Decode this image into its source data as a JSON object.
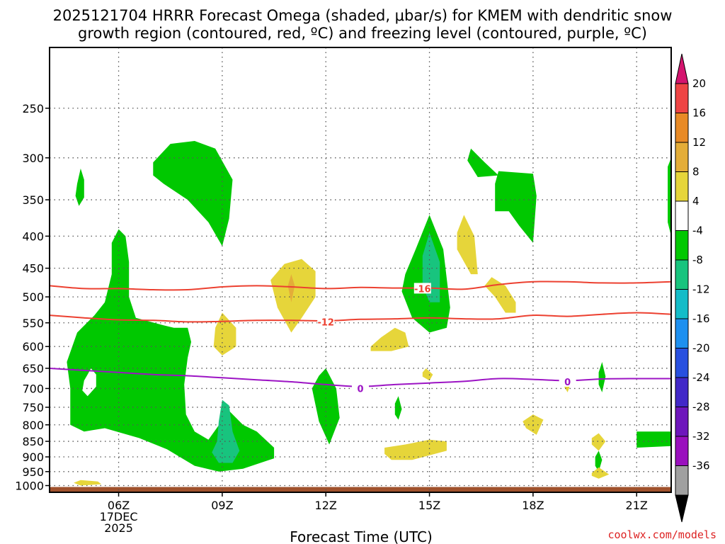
{
  "chart_data": {
    "type": "heatmap",
    "title_lines": [
      "2025121704 HRRR Forecast Omega (shaded, μbar/s) for KMEM with dendritic snow",
      "growth region (contoured, red, ºC) and freezing level (contoured, purple, ºC)"
    ],
    "xlabel": "Forecast Time (UTC)",
    "x_ticks": [
      {
        "hour": 6,
        "lines": [
          "06Z",
          "17DEC",
          "2025"
        ]
      },
      {
        "hour": 9,
        "lines": [
          "09Z"
        ]
      },
      {
        "hour": 12,
        "lines": [
          "12Z"
        ]
      },
      {
        "hour": 15,
        "lines": [
          "15Z"
        ]
      },
      {
        "hour": 18,
        "lines": [
          "18Z"
        ]
      },
      {
        "hour": 21,
        "lines": [
          "21Z"
        ]
      }
    ],
    "xlim": [
      4,
      22
    ],
    "y_ticks": [
      250,
      300,
      350,
      400,
      450,
      500,
      550,
      600,
      650,
      700,
      750,
      800,
      850,
      900,
      950,
      1000
    ],
    "ylim_hpa": [
      1025,
      200
    ],
    "ground_hpa": 1000,
    "credit": "coolwx.com/models",
    "colorbar": {
      "labels": [
        "20",
        "16",
        "12",
        "8",
        "4",
        "-4",
        "-8",
        "-12",
        "-16",
        "-20",
        "-24",
        "-28",
        "-32",
        "-36"
      ],
      "colors": [
        "#ee4444",
        "#e88a26",
        "#e4ad38",
        "#e6d53a",
        "#ffffff",
        "#00c800",
        "#18c47e",
        "#14bcc8",
        "#1e90f0",
        "#2850e0",
        "#4228c8",
        "#6e16bc",
        "#9a10be",
        "#a0a0a0"
      ],
      "top_arrow_color": "#d4146e",
      "bottom_arrow_color": "#000000"
    },
    "omega_regions": [
      {
        "band": "-4",
        "points": [
          [
            4.8,
            330
          ],
          [
            4.9,
            312
          ],
          [
            5.0,
            325
          ],
          [
            5.0,
            347
          ],
          [
            4.85,
            358
          ],
          [
            4.75,
            345
          ]
        ]
      },
      {
        "band": "-4",
        "points": [
          [
            7.0,
            305
          ],
          [
            7.5,
            285
          ],
          [
            8.2,
            282
          ],
          [
            8.8,
            290
          ],
          [
            9.3,
            325
          ],
          [
            9.2,
            375
          ],
          [
            9.0,
            415
          ],
          [
            8.6,
            380
          ],
          [
            8.0,
            350
          ],
          [
            7.3,
            330
          ],
          [
            7.0,
            320
          ]
        ]
      },
      {
        "band": "-4",
        "points": [
          [
            5.8,
            410
          ],
          [
            6.0,
            390
          ],
          [
            6.2,
            400
          ],
          [
            6.3,
            440
          ],
          [
            6.3,
            500
          ],
          [
            6.5,
            540
          ],
          [
            7.3,
            555
          ],
          [
            7.6,
            560
          ],
          [
            8.0,
            560
          ],
          [
            8.1,
            590
          ],
          [
            8.0,
            625
          ],
          [
            7.9,
            690
          ],
          [
            7.95,
            770
          ],
          [
            8.2,
            820
          ],
          [
            8.6,
            845
          ],
          [
            9.2,
            760
          ],
          [
            9.6,
            800
          ],
          [
            10.0,
            820
          ],
          [
            10.5,
            870
          ],
          [
            10.5,
            905
          ],
          [
            9.6,
            940
          ],
          [
            8.9,
            950
          ],
          [
            8.2,
            930
          ],
          [
            7.4,
            875
          ],
          [
            6.6,
            840
          ],
          [
            5.6,
            810
          ],
          [
            5.0,
            820
          ],
          [
            4.6,
            800
          ],
          [
            4.6,
            700
          ],
          [
            4.5,
            635
          ],
          [
            4.8,
            570
          ],
          [
            5.3,
            535
          ],
          [
            5.6,
            510
          ],
          [
            5.8,
            460
          ]
        ]
      },
      {
        "band": "-4",
        "points": [
          [
            11.8,
            668
          ],
          [
            12.0,
            650
          ],
          [
            12.3,
            700
          ],
          [
            12.4,
            780
          ],
          [
            12.1,
            860
          ],
          [
            11.8,
            790
          ],
          [
            11.6,
            700
          ]
        ]
      },
      {
        "band": "-4",
        "points": [
          [
            14.3,
            460
          ],
          [
            14.6,
            420
          ],
          [
            15.0,
            370
          ],
          [
            15.4,
            420
          ],
          [
            15.6,
            520
          ],
          [
            15.5,
            560
          ],
          [
            15.0,
            570
          ],
          [
            14.5,
            540
          ],
          [
            14.2,
            490
          ]
        ]
      },
      {
        "band": "-4",
        "points": [
          [
            16.1,
            303
          ],
          [
            16.2,
            290
          ],
          [
            16.6,
            305
          ],
          [
            17.0,
            320
          ],
          [
            16.4,
            322
          ]
        ]
      },
      {
        "band": "-4",
        "points": [
          [
            16.9,
            330
          ],
          [
            17.0,
            315
          ],
          [
            18.0,
            318
          ],
          [
            18.1,
            345
          ],
          [
            18.0,
            410
          ],
          [
            17.6,
            385
          ],
          [
            17.3,
            365
          ],
          [
            16.9,
            365
          ]
        ]
      },
      {
        "band": "-4",
        "points": [
          [
            21.9,
            310
          ],
          [
            22,
            300
          ],
          [
            22,
            400
          ],
          [
            21.9,
            380
          ]
        ]
      },
      {
        "band": "-4",
        "points": [
          [
            14.0,
            740
          ],
          [
            14.1,
            720
          ],
          [
            14.2,
            755
          ],
          [
            14.1,
            785
          ],
          [
            14.0,
            770
          ]
        ]
      },
      {
        "band": "-4",
        "points": [
          [
            19.9,
            660
          ],
          [
            20.0,
            635
          ],
          [
            20.1,
            670
          ],
          [
            20.0,
            710
          ],
          [
            19.9,
            690
          ]
        ]
      },
      {
        "band": "-4",
        "points": [
          [
            21.0,
            820
          ],
          [
            22,
            820
          ],
          [
            22,
            865
          ],
          [
            21.0,
            870
          ]
        ]
      },
      {
        "band": "-4",
        "points": [
          [
            19.8,
            900
          ],
          [
            19.9,
            880
          ],
          [
            20.0,
            910
          ],
          [
            19.9,
            950
          ],
          [
            19.8,
            930
          ]
        ]
      },
      {
        "band": "4",
        "points": [
          [
            10.4,
            470
          ],
          [
            10.8,
            443
          ],
          [
            11.3,
            435
          ],
          [
            11.7,
            455
          ],
          [
            11.7,
            500
          ],
          [
            11.3,
            540
          ],
          [
            11.0,
            570
          ],
          [
            10.6,
            520
          ]
        ]
      },
      {
        "band": "4",
        "points": [
          [
            8.8,
            560
          ],
          [
            9.0,
            530
          ],
          [
            9.4,
            560
          ],
          [
            9.4,
            600
          ],
          [
            9.0,
            620
          ],
          [
            8.75,
            600
          ]
        ]
      },
      {
        "band": "4",
        "points": [
          [
            15.8,
            395
          ],
          [
            16.0,
            370
          ],
          [
            16.3,
            400
          ],
          [
            16.4,
            460
          ],
          [
            16.2,
            460
          ],
          [
            15.8,
            420
          ]
        ]
      },
      {
        "band": "4",
        "points": [
          [
            16.6,
            480
          ],
          [
            16.8,
            465
          ],
          [
            17.2,
            480
          ],
          [
            17.5,
            510
          ],
          [
            17.5,
            530
          ],
          [
            17.2,
            530
          ],
          [
            16.9,
            500
          ]
        ]
      },
      {
        "band": "4",
        "points": [
          [
            13.3,
            600
          ],
          [
            13.6,
            580
          ],
          [
            14.0,
            560
          ],
          [
            14.3,
            570
          ],
          [
            14.4,
            600
          ],
          [
            13.9,
            610
          ],
          [
            13.3,
            610
          ]
        ]
      },
      {
        "band": "4",
        "points": [
          [
            14.8,
            660
          ],
          [
            14.9,
            650
          ],
          [
            15.1,
            665
          ],
          [
            15.0,
            680
          ],
          [
            14.8,
            670
          ]
        ]
      },
      {
        "band": "4",
        "points": [
          [
            18.9,
            680
          ],
          [
            19.0,
            670
          ],
          [
            19.1,
            685
          ],
          [
            19.0,
            710
          ],
          [
            18.9,
            695
          ]
        ]
      },
      {
        "band": "4",
        "points": [
          [
            17.7,
            790
          ],
          [
            18.0,
            770
          ],
          [
            18.3,
            785
          ],
          [
            18.1,
            830
          ],
          [
            17.8,
            810
          ]
        ]
      },
      {
        "band": "4",
        "points": [
          [
            19.7,
            840
          ],
          [
            19.9,
            825
          ],
          [
            20.1,
            850
          ],
          [
            19.9,
            880
          ],
          [
            19.7,
            860
          ]
        ]
      },
      {
        "band": "4",
        "points": [
          [
            13.7,
            870
          ],
          [
            14.3,
            860
          ],
          [
            15.0,
            845
          ],
          [
            15.5,
            850
          ],
          [
            15.5,
            880
          ],
          [
            14.5,
            910
          ],
          [
            13.9,
            910
          ],
          [
            13.7,
            890
          ]
        ]
      },
      {
        "band": "4",
        "points": [
          [
            19.7,
            955
          ],
          [
            19.9,
            935
          ],
          [
            20.2,
            960
          ],
          [
            19.9,
            975
          ],
          [
            19.7,
            965
          ]
        ]
      },
      {
        "band": "4",
        "points": [
          [
            4.7,
            990
          ],
          [
            4.9,
            980
          ],
          [
            5.4,
            985
          ],
          [
            5.5,
            995
          ],
          [
            4.9,
            1000
          ]
        ]
      },
      {
        "band": "8",
        "points": [
          [
            10.9,
            480
          ],
          [
            11.0,
            460
          ],
          [
            11.1,
            480
          ],
          [
            11.0,
            510
          ]
        ]
      },
      {
        "band": "-8",
        "points": [
          [
            14.8,
            430
          ],
          [
            15.0,
            395
          ],
          [
            15.3,
            440
          ],
          [
            15.3,
            510
          ],
          [
            15.0,
            510
          ],
          [
            14.8,
            480
          ]
        ]
      },
      {
        "band": "-8",
        "points": [
          [
            8.9,
            790
          ],
          [
            9.0,
            730
          ],
          [
            9.2,
            745
          ],
          [
            9.3,
            820
          ],
          [
            9.5,
            880
          ],
          [
            9.3,
            920
          ],
          [
            8.9,
            920
          ],
          [
            8.7,
            885
          ],
          [
            8.85,
            850
          ]
        ]
      },
      {
        "band": "white_hole",
        "points": [
          [
            5.0,
            680
          ],
          [
            5.1,
            665
          ],
          [
            5.2,
            650
          ],
          [
            5.35,
            665
          ],
          [
            5.35,
            695
          ],
          [
            5.1,
            720
          ],
          [
            4.95,
            705
          ]
        ]
      }
    ],
    "dgz_contours": [
      {
        "label": "-16",
        "label_at": [
          14.8,
          485
        ],
        "points": [
          [
            4,
            480
          ],
          [
            5,
            485
          ],
          [
            6,
            485
          ],
          [
            7,
            487
          ],
          [
            8,
            487
          ],
          [
            9,
            482
          ],
          [
            10,
            480
          ],
          [
            11,
            482
          ],
          [
            12,
            485
          ],
          [
            13,
            483
          ],
          [
            14,
            484
          ],
          [
            15,
            484
          ],
          [
            16,
            486
          ],
          [
            17,
            478
          ],
          [
            18,
            473
          ],
          [
            19,
            473
          ],
          [
            20,
            475
          ],
          [
            21,
            475
          ],
          [
            22,
            473
          ]
        ]
      },
      {
        "label": "-12",
        "label_at": [
          12.0,
          548
        ],
        "points": [
          [
            4,
            535
          ],
          [
            5,
            540
          ],
          [
            6,
            544
          ],
          [
            7,
            545
          ],
          [
            8,
            548
          ],
          [
            9,
            547
          ],
          [
            10,
            545
          ],
          [
            11,
            545
          ],
          [
            12,
            546
          ],
          [
            13,
            543
          ],
          [
            14,
            542
          ],
          [
            15,
            540
          ],
          [
            16,
            542
          ],
          [
            17,
            542
          ],
          [
            18,
            535
          ],
          [
            19,
            537
          ],
          [
            20,
            533
          ],
          [
            21,
            530
          ],
          [
            22,
            533
          ]
        ]
      }
    ],
    "freezing_contour": {
      "label": "0",
      "label_at": [
        13.0,
        700
      ],
      "label2_at": [
        19.0,
        683
      ],
      "points": [
        [
          4,
          650
        ],
        [
          5,
          655
        ],
        [
          6,
          660
        ],
        [
          7,
          665
        ],
        [
          8,
          668
        ],
        [
          9,
          673
        ],
        [
          10,
          678
        ],
        [
          11,
          683
        ],
        [
          12,
          690
        ],
        [
          13,
          695
        ],
        [
          14,
          690
        ],
        [
          15,
          686
        ],
        [
          16,
          682
        ],
        [
          17,
          675
        ],
        [
          18,
          677
        ],
        [
          19,
          680
        ],
        [
          20,
          676
        ],
        [
          21,
          675
        ],
        [
          22,
          675
        ]
      ]
    }
  }
}
